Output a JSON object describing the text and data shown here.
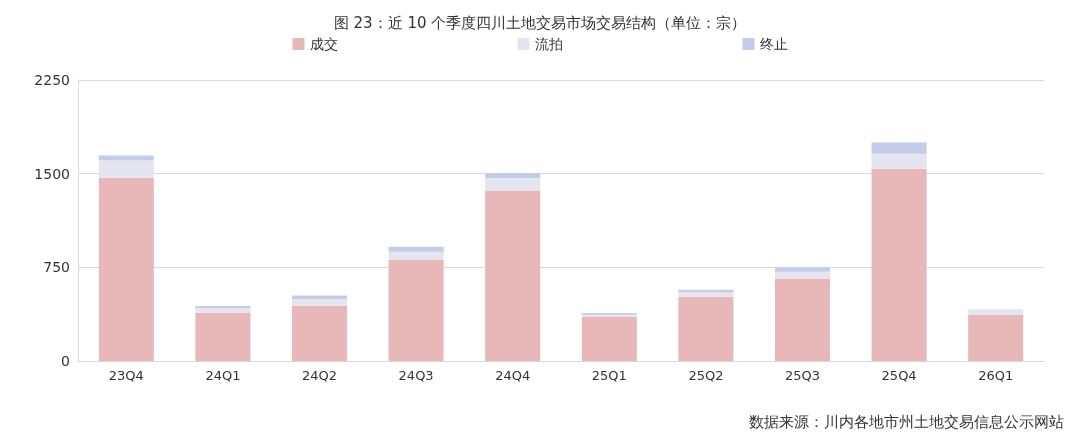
{
  "chart_data": {
    "type": "bar",
    "title": "图 23：近 10 个季度四川土地交易市场交易结构（单位：宗）",
    "categories": [
      "23Q4",
      "24Q1",
      "24Q2",
      "24Q3",
      "24Q4",
      "25Q1",
      "25Q2",
      "25Q3",
      "25Q4",
      "26Q1"
    ],
    "stacked": true,
    "series": [
      {
        "name": "成交",
        "color": "#e8b7b7",
        "values": [
          1465,
          385,
          445,
          810,
          1365,
          355,
          515,
          660,
          1540,
          370
        ]
      },
      {
        "name": "流拍",
        "color": "#e4e5ef",
        "values": [
          140,
          40,
          50,
          65,
          100,
          15,
          35,
          55,
          120,
          45
        ]
      },
      {
        "name": "终止",
        "color": "#c3cdeb",
        "values": [
          40,
          15,
          30,
          40,
          40,
          15,
          20,
          35,
          90,
          0
        ]
      }
    ],
    "ylim": [
      0,
      2250
    ],
    "yticks": [
      0,
      750,
      1500,
      2250
    ],
    "grid": "y",
    "legend": "top",
    "annotations": [
      "数据来源：川内各地市州土地交易信息公示网站"
    ]
  }
}
